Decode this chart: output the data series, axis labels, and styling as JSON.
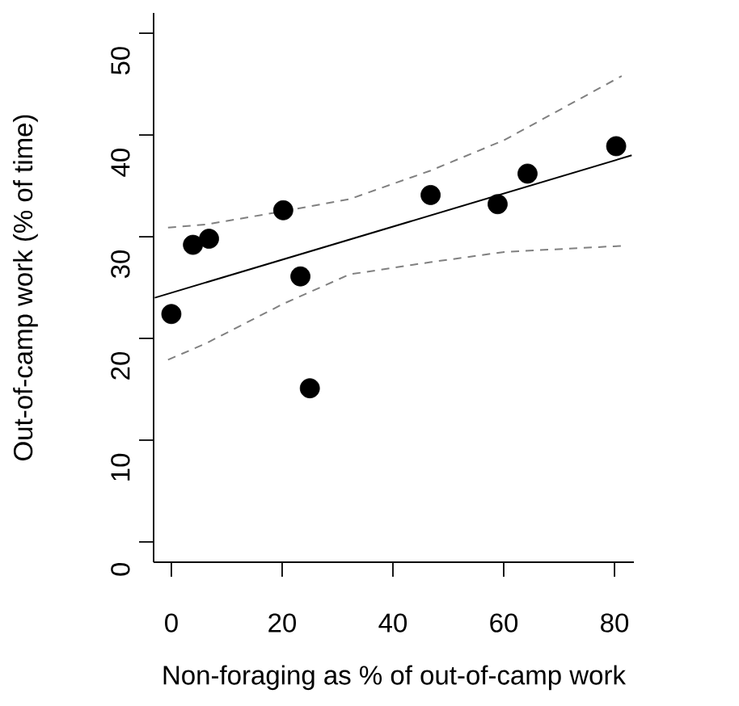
{
  "chart_data": {
    "type": "scatter",
    "xlabel": "Non-foraging as % of out-of-camp work",
    "ylabel": "Out-of-camp work (% of time)",
    "xlim": [
      -3.2,
      83.5
    ],
    "ylim": [
      -2,
      52
    ],
    "xticks": [
      0,
      20,
      40,
      60,
      80
    ],
    "yticks": [
      0,
      10,
      20,
      30,
      40,
      50
    ],
    "series": [
      {
        "marker": "circle",
        "color": "#000000",
        "x": [
          0,
          3.9,
          6.8,
          20.2,
          23.3,
          25.0,
          46.8,
          58.9,
          64.3,
          80.3
        ],
        "values": [
          22.4,
          29.2,
          29.8,
          32.6,
          26.1,
          15.1,
          34.1,
          33.2,
          36.2,
          38.9
        ]
      },
      {
        "type": "line",
        "marker": "none",
        "line_style": "solid",
        "color": "#000000",
        "x": [
          -3.0,
          83.1
        ],
        "values": [
          24.0,
          38.0
        ]
      },
      {
        "type": "line",
        "marker": "none",
        "line_style": "dashed",
        "color": "#808080",
        "x": [
          -0.6,
          6.2,
          20.2,
          32.2,
          46.8,
          60.1,
          81.3
        ],
        "values": [
          30.9,
          31.2,
          32.5,
          33.7,
          36.5,
          39.5,
          45.8
        ]
      },
      {
        "type": "line",
        "marker": "none",
        "line_style": "dashed",
        "color": "#808080",
        "x": [
          -0.6,
          6.2,
          20.2,
          32.2,
          46.8,
          60.1,
          81.3
        ],
        "values": [
          17.9,
          19.5,
          23.4,
          26.3,
          27.5,
          28.5,
          29.1
        ]
      }
    ]
  }
}
